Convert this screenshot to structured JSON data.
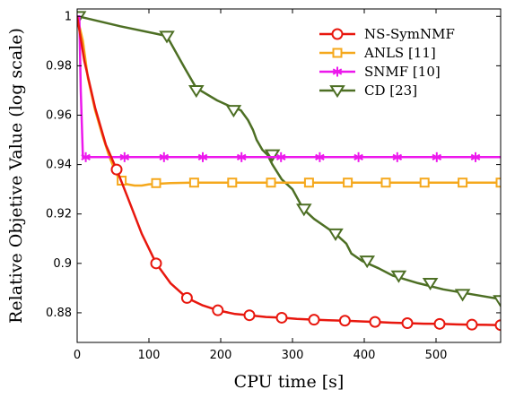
{
  "chart_data": {
    "type": "line",
    "title": "",
    "xlabel": "CPU time [s]",
    "ylabel": "Relative Objetive Value (log scale)",
    "xlim": [
      0,
      590
    ],
    "ylim": [
      0.868,
      1.003
    ],
    "xticks": [
      0,
      100,
      200,
      300,
      400,
      500
    ],
    "yticks": [
      0.88,
      0.9,
      0.92,
      0.94,
      0.96,
      0.98,
      1
    ],
    "ytick_labels": [
      "0.88",
      "0.9",
      "0.92",
      "0.94",
      "0.96",
      "0.98",
      "1"
    ],
    "grid": false,
    "legend_position": "top-right",
    "series": [
      {
        "name": "NS-SymNMF",
        "color": "#e8170e",
        "marker": "circle",
        "x": [
          0,
          10,
          25,
          40,
          55,
          70,
          90,
          110,
          130,
          153,
          175,
          196,
          220,
          240,
          263,
          285,
          306,
          330,
          350,
          373,
          398,
          415,
          438,
          460,
          483,
          505,
          528,
          550,
          570,
          590
        ],
        "y": [
          1.0,
          0.982,
          0.963,
          0.948,
          0.938,
          0.927,
          0.912,
          0.9,
          0.892,
          0.886,
          0.883,
          0.881,
          0.8795,
          0.879,
          0.8783,
          0.878,
          0.8775,
          0.8772,
          0.877,
          0.8768,
          0.8765,
          0.8763,
          0.876,
          0.8758,
          0.8756,
          0.8755,
          0.8753,
          0.8752,
          0.8751,
          0.875
        ],
        "marker_x": [
          55,
          110,
          153,
          196,
          240,
          285,
          330,
          373,
          415,
          460,
          505,
          550,
          590
        ],
        "marker_y": [
          0.938,
          0.9,
          0.886,
          0.881,
          0.879,
          0.878,
          0.8772,
          0.8768,
          0.8763,
          0.8758,
          0.8755,
          0.8752,
          0.875
        ]
      },
      {
        "name": "ANLS [11]",
        "color": "#f5a81c",
        "marker": "square",
        "x": [
          0,
          8,
          15,
          25,
          35,
          45,
          55,
          62,
          70,
          80,
          90,
          100,
          110,
          130,
          160,
          200,
          300,
          400,
          500,
          590
        ],
        "y": [
          1.0,
          0.99,
          0.975,
          0.962,
          0.952,
          0.943,
          0.936,
          0.933,
          0.932,
          0.9315,
          0.9315,
          0.932,
          0.9322,
          0.9325,
          0.9327,
          0.9327,
          0.9327,
          0.9327,
          0.9327,
          0.9327
        ],
        "marker_x": [
          62,
          110,
          163,
          216,
          270,
          323,
          377,
          430,
          484,
          537,
          590
        ],
        "marker_y": [
          0.9335,
          0.9325,
          0.9327,
          0.9327,
          0.9327,
          0.9327,
          0.9327,
          0.9327,
          0.9327,
          0.9327,
          0.9327
        ]
      },
      {
        "name": "SNMF [10]",
        "color": "#ec18ec",
        "marker": "asterisk",
        "x": [
          0,
          3,
          5,
          8,
          590
        ],
        "y": [
          1.0,
          1.0,
          0.97,
          0.943,
          0.943
        ],
        "marker_x": [
          12,
          66,
          121,
          175,
          229,
          284,
          338,
          392,
          446,
          501,
          555
        ],
        "marker_y": [
          0.943,
          0.943,
          0.943,
          0.943,
          0.943,
          0.943,
          0.943,
          0.943,
          0.943,
          0.943,
          0.943
        ]
      },
      {
        "name": "CD [23]",
        "color": "#4d6f24",
        "marker": "triangle-down",
        "x": [
          2,
          60,
          110,
          125,
          150,
          166,
          195,
          210,
          218,
          228,
          238,
          245,
          250,
          258,
          265,
          272,
          285,
          300,
          315,
          330,
          345,
          360,
          375,
          382,
          397,
          420,
          440,
          475,
          510,
          550,
          590
        ],
        "y": [
          1.0,
          0.996,
          0.993,
          0.992,
          0.979,
          0.971,
          0.966,
          0.964,
          0.963,
          0.962,
          0.958,
          0.954,
          0.95,
          0.946,
          0.944,
          0.94,
          0.934,
          0.93,
          0.922,
          0.918,
          0.915,
          0.912,
          0.908,
          0.904,
          0.901,
          0.898,
          0.895,
          0.892,
          0.8895,
          0.8875,
          0.8855
        ],
        "marker_x": [
          2,
          125,
          166,
          218,
          272,
          316,
          360,
          404,
          448,
          492,
          537,
          590
        ],
        "marker_y": [
          1.0,
          0.992,
          0.97,
          0.962,
          0.944,
          0.922,
          0.912,
          0.901,
          0.895,
          0.892,
          0.8875,
          0.885
        ]
      }
    ]
  }
}
